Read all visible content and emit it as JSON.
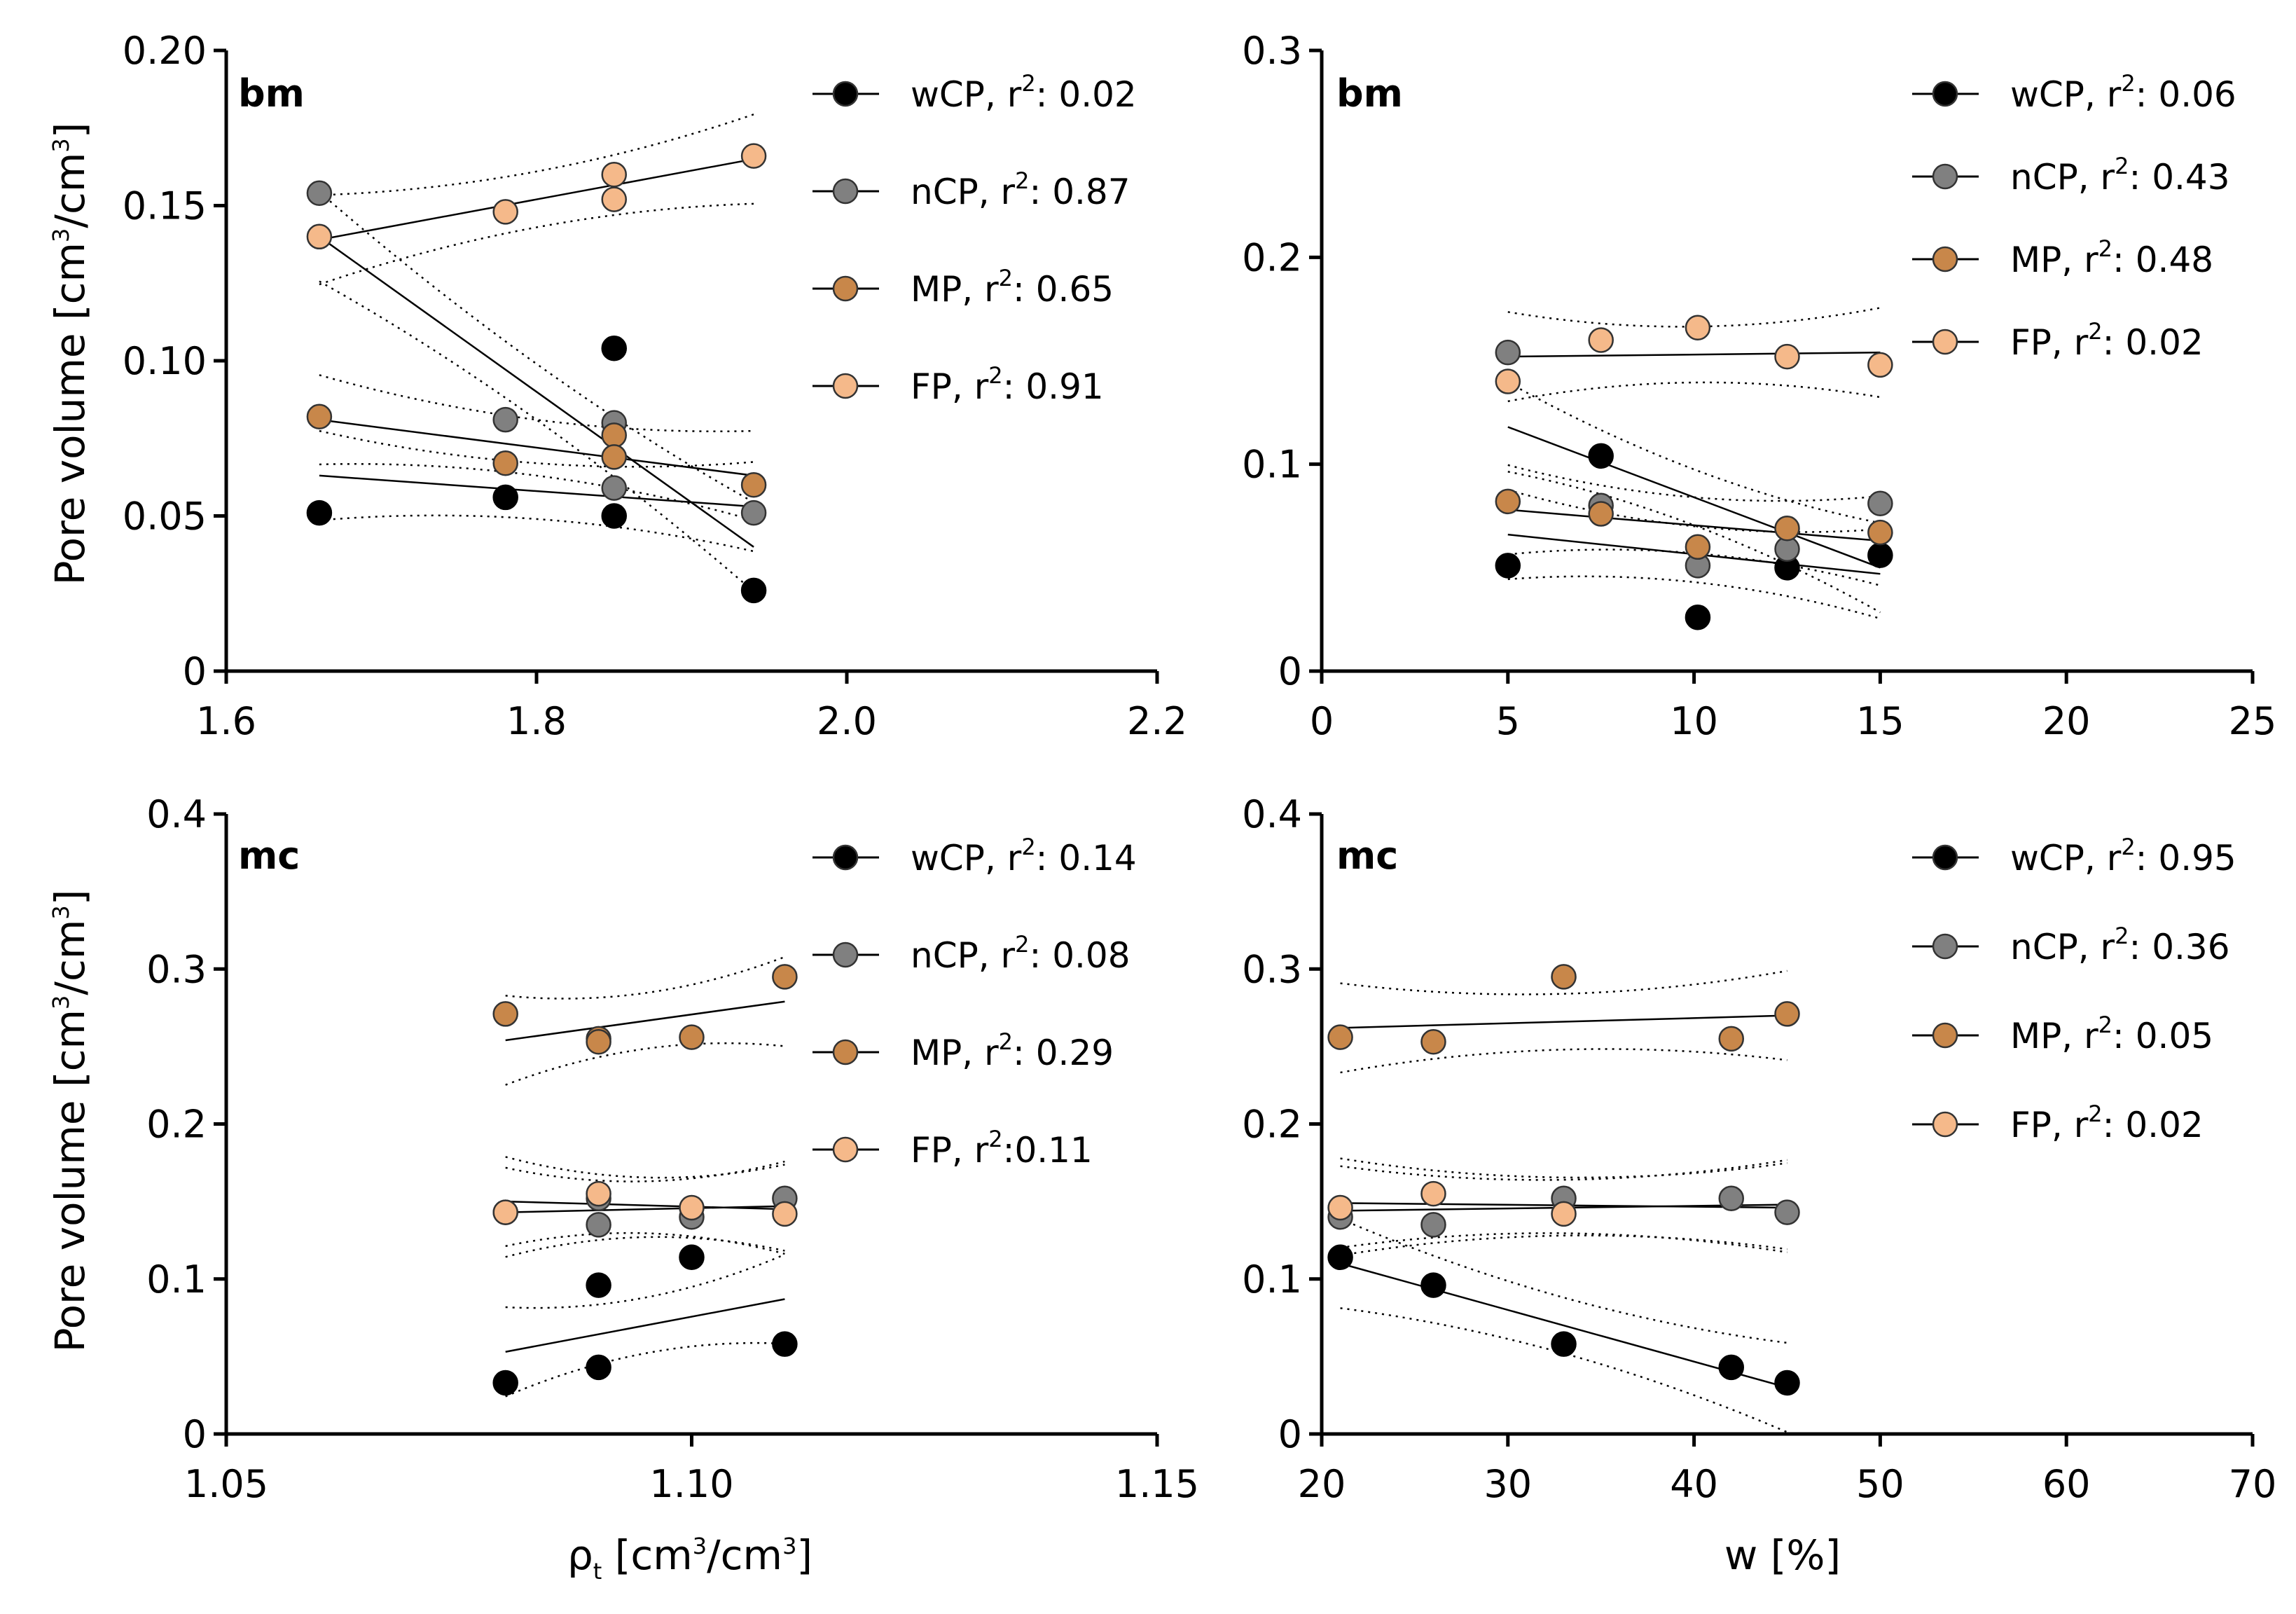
{
  "chart_data": [
    {
      "id": "bm-density",
      "type": "scatter",
      "panel_label": "bm",
      "ylabel_main": "Pore volume [cm",
      "ylabel_sup1": "3",
      "ylabel_mid": "/cm",
      "ylabel_sup2": "3",
      "ylabel_end": "]",
      "xlim": [
        1.6,
        2.2
      ],
      "ylim": [
        0,
        0.2
      ],
      "xticks": [
        1.6,
        1.8,
        2.0,
        2.2
      ],
      "xtick_labels": [
        "1.6",
        "1.8",
        "2.0",
        "2.2"
      ],
      "yticks": [
        0,
        0.05,
        0.1,
        0.15,
        0.2
      ],
      "ytick_labels": [
        "0",
        "0.05",
        "0.10",
        "0.15",
        "0.20"
      ],
      "legend_position": "top-right",
      "series": [
        {
          "name": "wCP",
          "r2": "0.02",
          "color": "#000000",
          "x": [
            1.66,
            1.78,
            1.85,
            1.85,
            1.94
          ],
          "y": [
            0.051,
            0.056,
            0.104,
            0.05,
            0.026
          ],
          "fit": [
            [
              1.66,
              0.063
            ],
            [
              1.94,
              0.053
            ]
          ]
        },
        {
          "name": "nCP",
          "r2": "0.87",
          "color": "#808080",
          "x": [
            1.66,
            1.78,
            1.85,
            1.85,
            1.94
          ],
          "y": [
            0.154,
            0.081,
            0.08,
            0.059,
            0.051
          ],
          "fit": [
            [
              1.66,
              0.14
            ],
            [
              1.94,
              0.04
            ]
          ]
        },
        {
          "name": "MP",
          "r2": "0.65",
          "color": "#c8874a",
          "x": [
            1.66,
            1.78,
            1.85,
            1.85,
            1.94
          ],
          "y": [
            0.082,
            0.067,
            0.076,
            0.069,
            0.06
          ],
          "fit": [
            [
              1.66,
              0.081
            ],
            [
              1.94,
              0.063
            ]
          ]
        },
        {
          "name": "FP",
          "r2": "0.91",
          "color": "#f5b98a",
          "x": [
            1.66,
            1.78,
            1.85,
            1.85,
            1.94
          ],
          "y": [
            0.14,
            0.148,
            0.16,
            0.152,
            0.166
          ],
          "fit": [
            [
              1.66,
              0.139
            ],
            [
              1.94,
              0.165
            ]
          ]
        }
      ],
      "legend_names": [
        "wCP, r",
        "nCP, r",
        "MP, r",
        "FP, r"
      ],
      "legend_sup": "2",
      "legend_values": [
        ": 0.02",
        ": 0.87",
        ": 0.65",
        ": 0.91"
      ]
    },
    {
      "id": "bm-water",
      "type": "scatter",
      "panel_label": "bm",
      "xlim": [
        0,
        25
      ],
      "ylim": [
        0,
        0.3
      ],
      "xticks": [
        0,
        5,
        10,
        15,
        20,
        25
      ],
      "xtick_labels": [
        "0",
        "5",
        "10",
        "15",
        "20",
        "25"
      ],
      "yticks": [
        0,
        0.1,
        0.2,
        0.3
      ],
      "ytick_labels": [
        "0",
        "0.1",
        "0.2",
        "0.3"
      ],
      "legend_position": "top-right",
      "series": [
        {
          "name": "wCP",
          "r2": "0.06",
          "color": "#000000",
          "x": [
            5,
            7.5,
            10.1,
            12.5,
            15
          ],
          "y": [
            0.051,
            0.104,
            0.026,
            0.05,
            0.056
          ],
          "fit": [
            [
              5,
              0.118
            ],
            [
              15,
              0.05
            ]
          ]
        },
        {
          "name": "nCP",
          "r2": "0.43",
          "color": "#808080",
          "x": [
            5,
            7.5,
            10.1,
            12.5,
            15
          ],
          "y": [
            0.154,
            0.08,
            0.051,
            0.059,
            0.081
          ],
          "fit": [
            [
              5,
              0.066
            ],
            [
              15,
              0.047
            ]
          ]
        },
        {
          "name": "MP",
          "r2": "0.48",
          "color": "#c8874a",
          "x": [
            5,
            7.5,
            10.1,
            12.5,
            15
          ],
          "y": [
            0.082,
            0.076,
            0.06,
            0.069,
            0.067
          ],
          "fit": [
            [
              5,
              0.078
            ],
            [
              15,
              0.063
            ]
          ]
        },
        {
          "name": "FP",
          "r2": "0.02",
          "color": "#f5b98a",
          "x": [
            5,
            7.5,
            10.1,
            12.5,
            15
          ],
          "y": [
            0.14,
            0.16,
            0.166,
            0.152,
            0.148
          ],
          "fit": [
            [
              5,
              0.152
            ],
            [
              15,
              0.154
            ]
          ]
        }
      ],
      "legend_names": [
        "wCP, r",
        "nCP, r",
        "MP, r",
        "FP, r"
      ],
      "legend_sup": "2",
      "legend_values": [
        ": 0.06",
        ": 0.43",
        ": 0.48",
        ": 0.02"
      ]
    },
    {
      "id": "mc-density",
      "type": "scatter",
      "panel_label": "mc",
      "ylabel_main": "Pore volume [cm",
      "ylabel_sup1": "3",
      "ylabel_mid": "/cm",
      "ylabel_sup2": "3",
      "ylabel_end": "]",
      "xlabel_main": "ρ",
      "xlabel_sub": "t",
      "xlabel_mid": " [cm",
      "xlabel_sup1": "3",
      "xlabel_mid2": "/cm",
      "xlabel_sup2": "3",
      "xlabel_end": "]",
      "xlim": [
        1.05,
        1.15
      ],
      "ylim": [
        0,
        0.4
      ],
      "xticks": [
        1.05,
        1.1,
        1.15
      ],
      "xtick_labels": [
        "1.05",
        "1.10",
        "1.15"
      ],
      "yticks": [
        0,
        0.1,
        0.2,
        0.3,
        0.4
      ],
      "ytick_labels": [
        "0",
        "0.1",
        "0.2",
        "0.3",
        "0.4"
      ],
      "legend_position": "top-right",
      "series": [
        {
          "name": "wCP",
          "r2": "0.14",
          "color": "#000000",
          "x": [
            1.08,
            1.09,
            1.09,
            1.1,
            1.11
          ],
          "y": [
            0.033,
            0.043,
            0.096,
            0.114,
            0.058
          ],
          "fit": [
            [
              1.08,
              0.053
            ],
            [
              1.11,
              0.087
            ]
          ]
        },
        {
          "name": "nCP",
          "r2": "0.08",
          "color": "#808080",
          "x": [
            1.08,
            1.09,
            1.09,
            1.1,
            1.11
          ],
          "y": [
            0.143,
            0.152,
            0.135,
            0.14,
            0.152
          ],
          "fit": [
            [
              1.08,
              0.143
            ],
            [
              1.11,
              0.147
            ]
          ]
        },
        {
          "name": "MP",
          "r2": "0.29",
          "color": "#c8874a",
          "x": [
            1.08,
            1.09,
            1.09,
            1.1,
            1.11
          ],
          "y": [
            0.271,
            0.255,
            0.253,
            0.256,
            0.295
          ],
          "fit": [
            [
              1.08,
              0.254
            ],
            [
              1.11,
              0.279
            ]
          ]
        },
        {
          "name": "FP",
          "r2": "0.11",
          "color": "#f5b98a",
          "x": [
            1.08,
            1.09,
            1.1,
            1.11
          ],
          "y": [
            0.143,
            0.155,
            0.146,
            0.142
          ],
          "fit": [
            [
              1.08,
              0.15
            ],
            [
              1.11,
              0.145
            ]
          ]
        }
      ],
      "legend_names": [
        "wCP, r",
        "nCP, r",
        "MP, r",
        "FP, r"
      ],
      "legend_sup": "2",
      "legend_values": [
        ": 0.14",
        ": 0.08",
        ": 0.29",
        ":0.11"
      ]
    },
    {
      "id": "mc-water",
      "type": "scatter",
      "panel_label": "mc",
      "xlabel_main": "w [%]",
      "xlim": [
        20,
        70
      ],
      "ylim": [
        0,
        0.4
      ],
      "xticks": [
        20,
        30,
        40,
        50,
        60,
        70
      ],
      "xtick_labels": [
        "20",
        "30",
        "40",
        "50",
        "60",
        "70"
      ],
      "yticks": [
        0,
        0.1,
        0.2,
        0.3,
        0.4
      ],
      "ytick_labels": [
        "0",
        "0.1",
        "0.2",
        "0.3",
        "0.4"
      ],
      "legend_position": "top-right",
      "series": [
        {
          "name": "wCP",
          "r2": "0.95",
          "color": "#000000",
          "x": [
            21,
            26,
            33,
            42,
            45
          ],
          "y": [
            0.114,
            0.096,
            0.058,
            0.043,
            0.033
          ],
          "fit": [
            [
              21,
              0.11
            ],
            [
              45,
              0.03
            ]
          ]
        },
        {
          "name": "nCP",
          "r2": "0.36",
          "color": "#808080",
          "x": [
            21,
            26,
            33,
            42,
            45
          ],
          "y": [
            0.14,
            0.135,
            0.152,
            0.152,
            0.143
          ],
          "fit": [
            [
              21,
              0.144
            ],
            [
              45,
              0.148
            ]
          ]
        },
        {
          "name": "MP",
          "r2": "0.05",
          "color": "#c8874a",
          "x": [
            21,
            26,
            33,
            42,
            45
          ],
          "y": [
            0.256,
            0.253,
            0.295,
            0.255,
            0.271
          ],
          "fit": [
            [
              21,
              0.262
            ],
            [
              45,
              0.27
            ]
          ]
        },
        {
          "name": "FP",
          "r2": "0.02",
          "color": "#f5b98a",
          "x": [
            21,
            26,
            33
          ],
          "y": [
            0.146,
            0.155,
            0.142
          ],
          "fit": [
            [
              21,
              0.149
            ],
            [
              45,
              0.146
            ]
          ]
        }
      ],
      "legend_names": [
        "wCP, r",
        "nCP, r",
        "MP, r",
        "FP, r"
      ],
      "legend_sup": "2",
      "legend_values": [
        ": 0.95",
        ": 0.36",
        ": 0.05",
        ": 0.02"
      ]
    }
  ]
}
